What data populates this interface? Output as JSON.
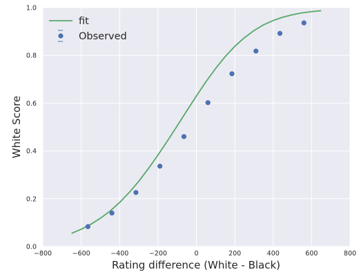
{
  "chart_data": {
    "type": "scatter",
    "xlabel": "Rating difference (White - Black)",
    "ylabel": "White Score",
    "xlim": [
      -800,
      800
    ],
    "ylim": [
      0,
      1
    ],
    "xticks": [
      -800,
      -600,
      -400,
      -200,
      0,
      200,
      400,
      600,
      800
    ],
    "yticks": [
      0.0,
      0.2,
      0.4,
      0.6,
      0.8,
      1.0
    ],
    "xtick_labels": [
      "−800",
      "−600",
      "−400",
      "−200",
      "0",
      "200",
      "400",
      "600",
      "800"
    ],
    "ytick_labels": [
      "0.0",
      "0.2",
      "0.4",
      "0.6",
      "0.8",
      "1.0"
    ],
    "grid": true,
    "legend_position": "top-left",
    "series": [
      {
        "name": "fit",
        "kind": "line",
        "color": "#55a868",
        "x": [
          -650,
          -600,
          -550,
          -500,
          -450,
          -400,
          -350,
          -300,
          -250,
          -200,
          -150,
          -100,
          -50,
          0,
          50,
          100,
          150,
          200,
          250,
          300,
          350,
          400,
          450,
          500,
          550,
          600,
          650
        ],
        "y": [
          0.055,
          0.072,
          0.093,
          0.118,
          0.148,
          0.184,
          0.226,
          0.273,
          0.326,
          0.383,
          0.443,
          0.505,
          0.568,
          0.63,
          0.69,
          0.745,
          0.795,
          0.838,
          0.874,
          0.904,
          0.928,
          0.946,
          0.96,
          0.97,
          0.978,
          0.983,
          0.987
        ]
      },
      {
        "name": "Observed",
        "kind": "errorbar-points",
        "color": "#4c72b0",
        "x": [
          -565,
          -440,
          -315,
          -190,
          -65,
          60,
          185,
          310,
          435,
          560
        ],
        "y": [
          0.083,
          0.14,
          0.226,
          0.336,
          0.46,
          0.602,
          0.723,
          0.818,
          0.892,
          0.936
        ]
      }
    ]
  }
}
